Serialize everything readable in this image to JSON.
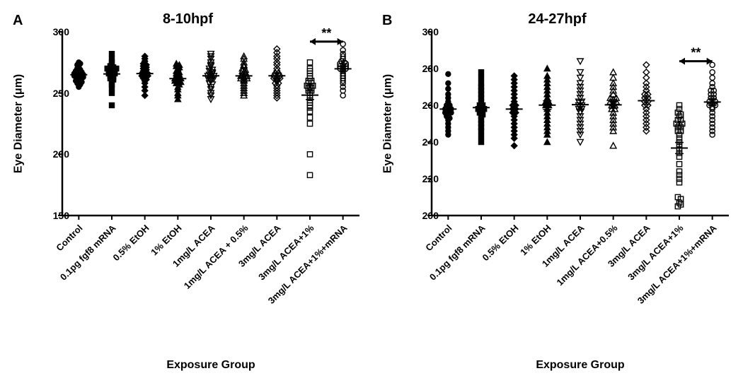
{
  "panelA": {
    "label": "A",
    "title": "8-10hpf",
    "type": "scatter-column",
    "ylabel": "Eye Diameter (μm)",
    "xlabel": "Exposure Group",
    "ylim": [
      150,
      300
    ],
    "yticks": [
      150,
      200,
      250,
      300
    ],
    "categories": [
      "Control",
      "0.1pg fgf8 mRNA",
      "0.5% EtOH",
      "1% EtOH",
      "1mg/L ACEA",
      "1mg/L ACEA + 0.5%",
      "3mg/L ACEA",
      "3mg/L ACEA+1%",
      "3mg/L ACEA+1%+mRNA"
    ],
    "markers": [
      "filled-circle",
      "filled-square",
      "filled-diamond",
      "filled-triangle",
      "open-triangle-down",
      "open-triangle-up",
      "open-diamond",
      "open-square",
      "open-circle"
    ],
    "text_color": "#000000",
    "axis_color": "#000000",
    "marker_color": "#000000",
    "title_fontsize": 20,
    "label_fontsize": 16,
    "tick_fontsize": 14,
    "significance": {
      "between": [
        7,
        8
      ],
      "label": "**",
      "y": 292
    },
    "series": [
      [
        275,
        273,
        272,
        270,
        269,
        268,
        268,
        267,
        266,
        266,
        265,
        265,
        264,
        264,
        263,
        263,
        262,
        261,
        260,
        260,
        259,
        258,
        257,
        255,
        274
      ],
      [
        282,
        278,
        275,
        273,
        272,
        271,
        270,
        270,
        269,
        268,
        268,
        267,
        266,
        265,
        264,
        263,
        262,
        261,
        259,
        257,
        254,
        250,
        240,
        270,
        266
      ],
      [
        280,
        278,
        276,
        274,
        273,
        272,
        271,
        270,
        269,
        268,
        267,
        266,
        265,
        264,
        263,
        262,
        260,
        258,
        255,
        252,
        248,
        266,
        264,
        261
      ],
      [
        274,
        273,
        272,
        271,
        270,
        268,
        267,
        266,
        265,
        264,
        263,
        262,
        261,
        260,
        260,
        259,
        258,
        257,
        255,
        253,
        250,
        248,
        245,
        262
      ],
      [
        282,
        280,
        278,
        275,
        273,
        272,
        270,
        269,
        268,
        267,
        265,
        264,
        263,
        262,
        261,
        260,
        258,
        257,
        255,
        253,
        250,
        248,
        245,
        266,
        264,
        262
      ],
      [
        280,
        278,
        275,
        273,
        272,
        270,
        269,
        268,
        267,
        265,
        264,
        263,
        262,
        261,
        260,
        258,
        256,
        254,
        252,
        250,
        248,
        262,
        264,
        266
      ],
      [
        286,
        283,
        280,
        278,
        275,
        273,
        270,
        268,
        266,
        264,
        263,
        262,
        261,
        260,
        258,
        256,
        254,
        252,
        250,
        248,
        246,
        262,
        264,
        266,
        258
      ],
      [
        275,
        270,
        268,
        266,
        264,
        262,
        260,
        258,
        256,
        255,
        254,
        252,
        250,
        248,
        246,
        244,
        242,
        240,
        238,
        235,
        230,
        225,
        200,
        183,
        258,
        256,
        254,
        252,
        260
      ],
      [
        290,
        285,
        282,
        280,
        278,
        276,
        275,
        274,
        273,
        272,
        271,
        270,
        269,
        268,
        266,
        264,
        262,
        260,
        258,
        255,
        252,
        248,
        270,
        272,
        274
      ]
    ]
  },
  "panelB": {
    "label": "B",
    "title": "24-27hpf",
    "type": "scatter-column",
    "ylabel": "Eye Diameter (μm)",
    "xlabel": "Exposure Group",
    "ylim": [
      200,
      300
    ],
    "yticks": [
      200,
      220,
      240,
      260,
      280,
      300
    ],
    "categories": [
      "Control",
      "0.1pg fgf8 mRNA",
      "0.5% EtOH",
      "1% EtOH",
      "1mg/L ACEA",
      "1mg/L ACEA+0.5%",
      "3mg/L ACEA",
      "3mg/L ACEA+1%",
      "3mg/L ACEA+1%+mRNA"
    ],
    "markers": [
      "filled-circle",
      "filled-square",
      "filled-diamond",
      "filled-triangle",
      "open-triangle-down",
      "open-triangle-up",
      "open-diamond",
      "open-square",
      "open-circle"
    ],
    "text_color": "#000000",
    "axis_color": "#000000",
    "marker_color": "#000000",
    "title_fontsize": 20,
    "label_fontsize": 16,
    "tick_fontsize": 14,
    "significance": {
      "between": [
        7,
        8
      ],
      "label": "**",
      "y": 284
    },
    "series": [
      [
        277,
        272,
        269,
        266,
        264,
        262,
        260,
        258,
        257,
        256,
        255,
        254,
        253,
        252,
        250,
        248,
        246,
        244,
        260,
        258,
        256
      ],
      [
        278,
        275,
        272,
        270,
        268,
        266,
        264,
        262,
        260,
        258,
        257,
        256,
        255,
        254,
        252,
        250,
        248,
        246,
        243,
        240,
        260,
        258
      ],
      [
        276,
        274,
        272,
        270,
        268,
        266,
        264,
        262,
        260,
        258,
        256,
        254,
        252,
        250,
        248,
        246,
        244,
        242,
        238,
        260,
        258,
        256
      ],
      [
        280,
        276,
        274,
        272,
        270,
        268,
        266,
        264,
        262,
        260,
        258,
        256,
        254,
        252,
        250,
        248,
        246,
        244,
        240,
        262,
        260
      ],
      [
        284,
        278,
        275,
        272,
        270,
        268,
        266,
        264,
        262,
        260,
        258,
        256,
        254,
        252,
        250,
        248,
        246,
        244,
        240,
        262,
        260,
        258
      ],
      [
        278,
        275,
        272,
        270,
        268,
        266,
        264,
        263,
        262,
        261,
        260,
        258,
        256,
        254,
        252,
        250,
        248,
        246,
        238,
        262,
        260,
        258,
        264
      ],
      [
        282,
        278,
        275,
        272,
        270,
        268,
        266,
        264,
        262,
        260,
        258,
        256,
        254,
        252,
        250,
        248,
        246,
        260,
        262,
        264,
        266
      ],
      [
        260,
        258,
        256,
        255,
        254,
        252,
        250,
        249,
        248,
        246,
        244,
        242,
        240,
        238,
        236,
        234,
        232,
        228,
        224,
        222,
        220,
        218,
        210,
        209,
        207,
        205,
        206,
        250,
        248,
        246,
        252
      ],
      [
        282,
        278,
        275,
        272,
        270,
        268,
        266,
        264,
        262,
        261,
        260,
        259,
        258,
        256,
        254,
        252,
        250,
        248,
        246,
        244,
        260,
        262,
        264,
        266,
        268
      ]
    ]
  }
}
